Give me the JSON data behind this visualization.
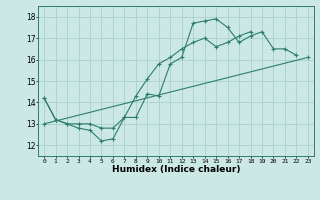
{
  "title": "",
  "xlabel": "Humidex (Indice chaleur)",
  "xlim": [
    -0.5,
    23.5
  ],
  "ylim": [
    11.5,
    18.5
  ],
  "xticks": [
    0,
    1,
    2,
    3,
    4,
    5,
    6,
    7,
    8,
    9,
    10,
    11,
    12,
    13,
    14,
    15,
    16,
    17,
    18,
    19,
    20,
    21,
    22,
    23
  ],
  "yticks": [
    12,
    13,
    14,
    15,
    16,
    17,
    18
  ],
  "bg_color": "#cce8e4",
  "line_color": "#2d7d6e",
  "grid_color": "#aacfca",
  "series": [
    {
      "x": [
        0,
        1,
        2,
        3,
        4,
        5,
        6,
        7,
        8,
        9,
        10,
        11,
        12,
        13,
        14,
        15,
        16,
        17,
        18,
        19,
        20,
        21,
        22
      ],
      "y": [
        14.2,
        13.2,
        13.0,
        12.8,
        12.7,
        12.2,
        12.3,
        13.3,
        13.3,
        14.4,
        14.3,
        15.8,
        16.1,
        17.7,
        17.8,
        17.9,
        17.5,
        16.8,
        17.1,
        17.3,
        16.5,
        16.5,
        16.2
      ]
    },
    {
      "x": [
        0,
        1,
        2,
        3,
        4,
        5,
        6,
        7,
        8,
        9,
        10,
        11,
        12,
        13,
        14,
        15,
        16,
        17,
        18
      ],
      "y": [
        14.2,
        13.2,
        13.0,
        13.0,
        13.0,
        12.8,
        12.8,
        13.3,
        14.3,
        15.1,
        15.8,
        16.1,
        16.5,
        16.8,
        17.0,
        16.6,
        16.8,
        17.1,
        17.3
      ]
    },
    {
      "x": [
        0,
        23
      ],
      "y": [
        13.0,
        16.1
      ]
    }
  ]
}
